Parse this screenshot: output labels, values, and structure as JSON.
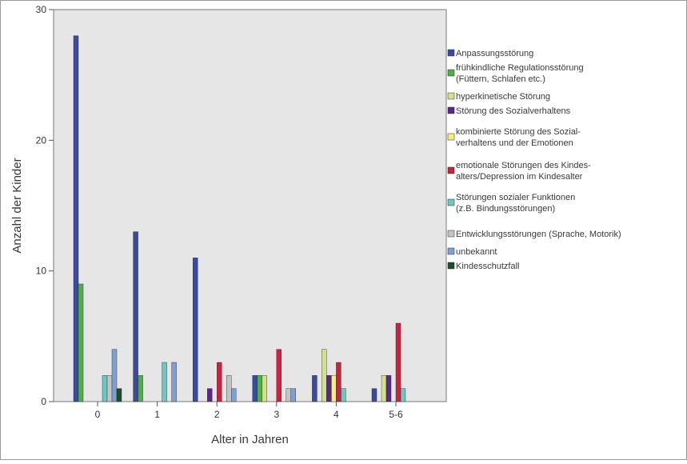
{
  "chart_data": {
    "type": "bar",
    "xlabel": "Alter in Jahren",
    "ylabel": "Anzahl der Kinder",
    "ylim": [
      0,
      30
    ],
    "yticks": [
      0,
      10,
      20,
      30
    ],
    "categories": [
      "0",
      "1",
      "2",
      "3",
      "4",
      "5-6"
    ],
    "legend_position": "right",
    "grid": false,
    "series": [
      {
        "name": "Anpassungsstörung",
        "color": "#3a4a9e",
        "values": [
          28,
          13,
          11,
          2,
          2,
          1
        ]
      },
      {
        "name": "frühkindliche Regulationsstörung (Füttern, Schlafen etc.)",
        "color": "#4fae4a",
        "values": [
          9,
          2,
          0,
          2,
          0,
          0
        ]
      },
      {
        "name": "hyperkinetische Störung",
        "color": "#d2e08a",
        "values": [
          0,
          0,
          0,
          2,
          4,
          2
        ]
      },
      {
        "name": "Störung des Sozialverhaltens",
        "color": "#5a2a82",
        "values": [
          0,
          0,
          1,
          0,
          2,
          2
        ]
      },
      {
        "name": "kombinierte Störung des Sozialverhaltens und der Emotionen",
        "color": "#f4ef7a",
        "values": [
          0,
          0,
          0,
          0,
          2,
          0
        ]
      },
      {
        "name": "emotionale Störungen des Kindesalters/Depression im Kindesalter",
        "color": "#c8233f",
        "values": [
          0,
          0,
          3,
          4,
          3,
          6
        ]
      },
      {
        "name": "Störungen sozialer Funktionen (z.B. Bindungsstörungen)",
        "color": "#6cc7c2",
        "values": [
          2,
          3,
          0,
          0,
          1,
          1
        ]
      },
      {
        "name": "Entwicklungsstörungen (Sprache, Motorik)",
        "color": "#c4c4c4",
        "values": [
          2,
          0,
          2,
          1,
          0,
          0
        ]
      },
      {
        "name": "unbekannt",
        "color": "#7f9fd0",
        "values": [
          4,
          3,
          1,
          1,
          0,
          0
        ]
      },
      {
        "name": "Kindesschutzfall",
        "color": "#1d4d2c",
        "values": [
          1,
          0,
          0,
          0,
          0,
          0
        ]
      }
    ]
  }
}
